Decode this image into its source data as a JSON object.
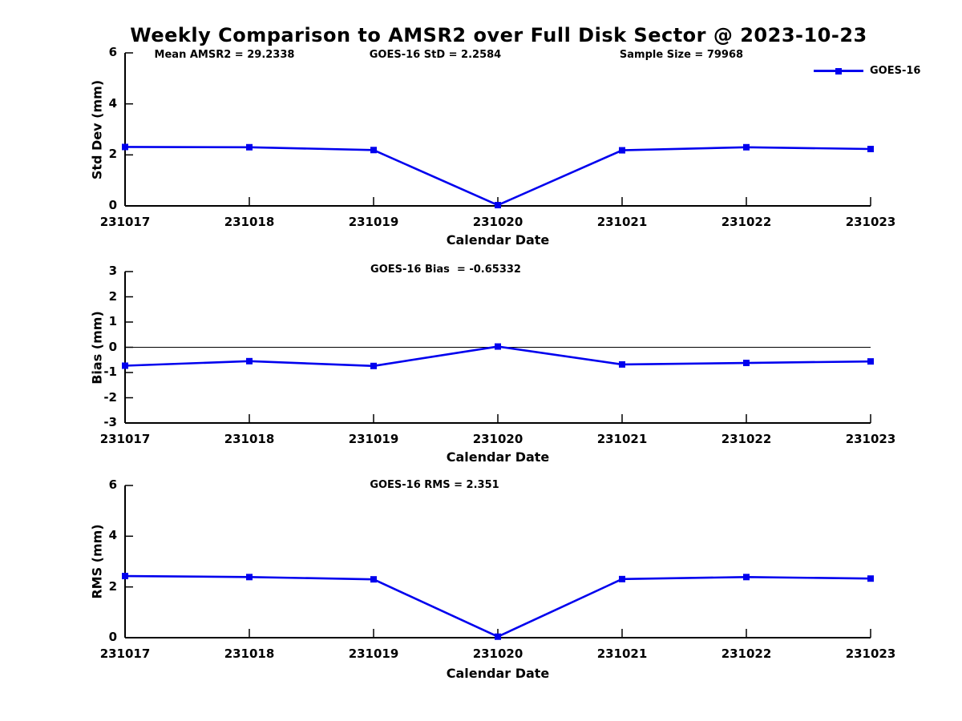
{
  "title": "Weekly Comparison to AMSR2 over Full Disk Sector @ 2023-10-23",
  "colors": {
    "series": "#0000EE",
    "axis": "#000000",
    "text": "#000000",
    "background": "#FFFFFF"
  },
  "legend": {
    "label": "GOES-16"
  },
  "chart_data": [
    {
      "type": "line",
      "annotations": [
        "Mean AMSR2 = 29.2338",
        "GOES-16 StD = 2.2584",
        "Sample Size = 79968"
      ],
      "x": [
        "231017",
        "231018",
        "231019",
        "231020",
        "231021",
        "231022",
        "231023"
      ],
      "series": [
        {
          "name": "GOES-16",
          "values": [
            2.31,
            2.3,
            2.19,
            0.03,
            2.18,
            2.3,
            2.23
          ]
        }
      ],
      "xlabel": "Calendar Date",
      "ylabel": "Std Dev (mm)",
      "ylim": [
        0,
        6
      ],
      "yticks": [
        0,
        2,
        4,
        6
      ],
      "grid": false,
      "legend_position": "top-right"
    },
    {
      "type": "line",
      "annotations": [
        "GOES-16 Bias  = -0.65332"
      ],
      "x": [
        "231017",
        "231018",
        "231019",
        "231020",
        "231021",
        "231022",
        "231023"
      ],
      "series": [
        {
          "name": "GOES-16",
          "values": [
            -0.73,
            -0.55,
            -0.74,
            0.03,
            -0.68,
            -0.62,
            -0.56
          ]
        }
      ],
      "xlabel": "Calendar Date",
      "ylabel": "Bias (mm)",
      "ylim": [
        -3,
        3
      ],
      "yticks": [
        -3,
        -2,
        -1,
        0,
        1,
        2,
        3
      ],
      "zero_line": true,
      "grid": false
    },
    {
      "type": "line",
      "annotations": [
        "GOES-16 RMS = 2.351"
      ],
      "x": [
        "231017",
        "231018",
        "231019",
        "231020",
        "231021",
        "231022",
        "231023"
      ],
      "series": [
        {
          "name": "GOES-16",
          "values": [
            2.43,
            2.39,
            2.3,
            0.04,
            2.31,
            2.39,
            2.33
          ]
        }
      ],
      "xlabel": "Calendar Date",
      "ylabel": "RMS (mm)",
      "ylim": [
        0,
        6
      ],
      "yticks": [
        0,
        2,
        4,
        6
      ],
      "grid": false
    }
  ]
}
